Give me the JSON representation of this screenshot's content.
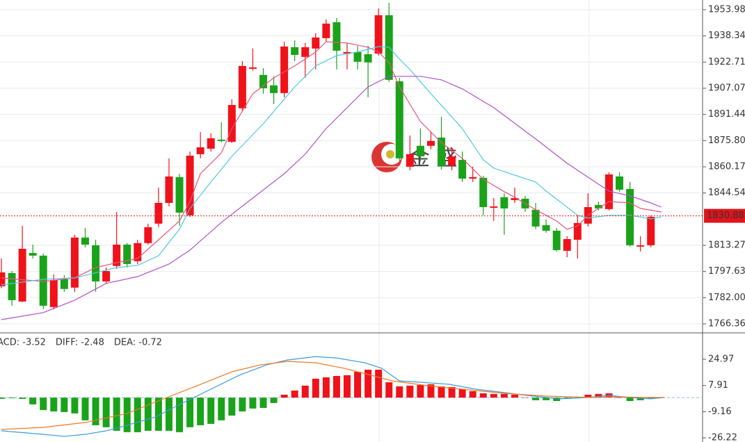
{
  "chart_data": [
    {
      "type": "candlestick",
      "up_color": "#f0121a",
      "down_color": "#1aa31a",
      "open": [
        1788.8,
        1796.7,
        1779.7,
        1808.7,
        1807.1,
        1776.4,
        1793.0,
        1788.0,
        1817.9,
        1813.3,
        1791.7,
        1800.9,
        1813.7,
        1803.8,
        1814.6,
        1826.2,
        1838.6,
        1854.0,
        1831.2,
        1867.7,
        1871.0,
        1876.4,
        1875.1,
        1895.1,
        1918.7,
        1915.0,
        1908.8,
        1904.2,
        1931.6,
        1925.8,
        1930.8,
        1937.0,
        1946.5,
        1927.8,
        1928.7,
        1927.4,
        1927.8,
        1950.7,
        1911.2,
        1860.2,
        1872.7,
        1872.7,
        1877.6,
        1861.0,
        1864.3,
        1853.1,
        1853.6,
        1835.7,
        1842.0,
        1840.3,
        1841.1,
        1834.5,
        1825.3,
        1822.0,
        1810.0,
        1816.6,
        1826.2,
        1837.4,
        1834.9,
        1854.4,
        1846.9,
        1812.5,
        1813.3
      ],
      "high": [
        1805.4,
        1797.9,
        1824.9,
        1813.7,
        1808.3,
        1795.9,
        1795.5,
        1819.5,
        1823.7,
        1816.6,
        1800.0,
        1833.2,
        1814.6,
        1816.6,
        1826.2,
        1847.8,
        1865.2,
        1856.0,
        1869.3,
        1880.9,
        1880.1,
        1886.8,
        1900.5,
        1923.3,
        1930.8,
        1919.1,
        1914.2,
        1934.9,
        1935.7,
        1934.1,
        1939.9,
        1948.2,
        1949.0,
        1934.1,
        1932.4,
        1932.4,
        1954.8,
        1958.1,
        1913.3,
        1878.9,
        1883.0,
        1880.9,
        1890.1,
        1871.8,
        1869.3,
        1860.2,
        1854.8,
        1841.5,
        1844.4,
        1847.8,
        1842.8,
        1838.6,
        1828.7,
        1823.7,
        1818.7,
        1831.2,
        1844.4,
        1839.4,
        1856.9,
        1856.9,
        1851.1,
        1818.7,
        1831.2
      ],
      "low": [
        1787.6,
        1777.2,
        1779.3,
        1805.4,
        1775.1,
        1775.1,
        1785.5,
        1785.5,
        1812.1,
        1785.5,
        1790.5,
        1799.2,
        1800.0,
        1802.1,
        1813.7,
        1824.1,
        1836.5,
        1824.9,
        1830.3,
        1865.2,
        1869.3,
        1874.7,
        1874.3,
        1893.4,
        1917.5,
        1903.8,
        1897.6,
        1901.7,
        1923.3,
        1913.3,
        1918.3,
        1934.9,
        1918.3,
        1918.3,
        1918.3,
        1901.7,
        1926.6,
        1910.8,
        1863.5,
        1858.1,
        1863.5,
        1870.6,
        1858.5,
        1858.1,
        1851.1,
        1851.1,
        1831.2,
        1827.8,
        1819.5,
        1838.6,
        1833.2,
        1822.9,
        1820.8,
        1809.6,
        1806.2,
        1805.4,
        1824.5,
        1834.1,
        1834.1,
        1845.3,
        1812.5,
        1809.6,
        1812.1
      ],
      "close": [
        1797.1,
        1780.5,
        1811.2,
        1807.1,
        1777.2,
        1792.6,
        1787.2,
        1817.9,
        1813.7,
        1791.7,
        1797.9,
        1813.7,
        1802.1,
        1814.6,
        1824.1,
        1838.6,
        1854.4,
        1832.8,
        1866.8,
        1871.8,
        1877.2,
        1875.6,
        1897.1,
        1920.4,
        1919.5,
        1907.1,
        1904.2,
        1932.0,
        1927.0,
        1931.6,
        1937.4,
        1945.7,
        1929.5,
        1928.7,
        1922.9,
        1922.5,
        1950.7,
        1912.1,
        1865.2,
        1867.7,
        1866.4,
        1875.6,
        1860.6,
        1866.4,
        1853.1,
        1854.0,
        1836.1,
        1836.5,
        1835.3,
        1841.5,
        1835.3,
        1824.5,
        1822.0,
        1810.4,
        1817.0,
        1826.6,
        1836.1,
        1835.3,
        1855.6,
        1846.5,
        1813.3,
        1813.3,
        1830.3
      ],
      "series": [
        {
          "color": "#e8537a",
          "x": [
            0,
            4,
            7,
            9,
            11,
            13,
            15,
            17,
            18,
            19,
            21,
            22,
            24,
            26,
            28,
            30,
            31,
            33,
            35,
            36,
            37,
            38,
            40,
            42,
            44,
            46,
            48,
            49,
            51,
            53,
            54,
            55,
            56,
            57,
            58,
            60,
            61,
            63
          ],
          "values": [
            1793.8,
            1791.7,
            1793.8,
            1800.0,
            1802.9,
            1805.4,
            1816.6,
            1827.8,
            1839.4,
            1856.0,
            1868.5,
            1883.0,
            1903.8,
            1913.3,
            1920.4,
            1928.7,
            1934.9,
            1934.1,
            1931.6,
            1928.7,
            1922.4,
            1907.9,
            1887.2,
            1874.7,
            1865.2,
            1852.7,
            1845.3,
            1842.0,
            1834.5,
            1827.8,
            1822.8,
            1824.9,
            1831.2,
            1835.3,
            1839.4,
            1838.6,
            1835.3,
            1833.2
          ]
        },
        {
          "color": "#4fc8e0",
          "x": [
            0,
            4,
            7,
            11,
            13,
            15,
            17,
            18,
            20,
            22,
            25,
            28,
            30,
            32,
            34,
            36,
            37,
            38,
            39,
            41,
            44,
            46,
            47,
            49,
            51,
            52,
            54,
            55,
            56,
            58,
            60,
            62,
            63
          ],
          "values": [
            1789.6,
            1793.0,
            1793.8,
            1800.0,
            1801.3,
            1807.1,
            1822.9,
            1835.3,
            1851.1,
            1866.4,
            1885.9,
            1907.9,
            1920.4,
            1926.6,
            1928.7,
            1932.0,
            1931.6,
            1924.5,
            1918.3,
            1903.8,
            1883.0,
            1864.3,
            1859.4,
            1855.2,
            1851.1,
            1845.7,
            1836.1,
            1831.2,
            1829.5,
            1831.2,
            1831.2,
            1829.1,
            1830.3
          ]
        },
        {
          "color": "#b04fc8",
          "x": [
            0,
            4,
            7,
            10,
            13,
            16,
            18,
            21,
            24,
            27,
            29,
            31,
            33,
            35,
            37,
            40,
            42,
            44,
            47,
            51,
            54,
            57,
            58,
            60,
            62,
            63
          ],
          "values": [
            1768.9,
            1773.1,
            1780.5,
            1790.5,
            1794.6,
            1802.1,
            1810.4,
            1827.0,
            1841.5,
            1856.0,
            1867.7,
            1883.0,
            1895.5,
            1907.9,
            1914.2,
            1914.2,
            1912.1,
            1906.7,
            1895.5,
            1876.8,
            1862.3,
            1849.8,
            1845.7,
            1842.8,
            1838.6,
            1836.1
          ]
        }
      ],
      "last_price": 1830.88,
      "ylim": [
        1761.38,
        1959.79
      ],
      "yticks": [
        1953.98,
        1938.34,
        1922.71,
        1907.07,
        1891.44,
        {
          "value": 1875.8,
          "label": "1875.80"
        },
        1860.17,
        1844.54,
        1813.27,
        1797.63,
        {
          "value": 1782.0,
          "label": "1782.00"
        },
        1766.36
      ],
      "grid": true,
      "watermark": "金 盛"
    },
    {
      "type": "macd",
      "series": [
        {
          "name": "ACD: -3.52",
          "color": "#1aa31a",
          "up_color": "#f0121a",
          "values": [
            -0.8,
            -0.4,
            -0.8,
            -4.4,
            -8.1,
            -9.0,
            -9.4,
            -10.3,
            -14.8,
            -18.0,
            -19.3,
            -21.6,
            -22.5,
            -22.5,
            -21.6,
            -21.6,
            -21.6,
            -22.5,
            -19.3,
            -18.0,
            -17.1,
            -14.8,
            -11.7,
            -9.0,
            -7.1,
            -6.7,
            -3.5,
            1.9,
            4.6,
            7.8,
            12.3,
            13.2,
            14.1,
            14.6,
            16.8,
            18.2,
            18.2,
            10.0,
            7.3,
            7.8,
            8.2,
            8.7,
            7.3,
            6.9,
            5.5,
            4.2,
            2.8,
            2.4,
            2.4,
            1.9,
            0.1,
            -1.7,
            -1.7,
            -2.2,
            -0.8,
            -0.4,
            1.9,
            2.4,
            2.8,
            0.1,
            -2.2,
            -1.7,
            -0.4
          ]
        },
        {
          "name": "DIFF: -2.48",
          "color": "#3a9be0",
          "x": [
            0,
            4,
            6,
            8,
            10,
            12,
            14.7,
            17.3,
            20,
            22.7,
            25.3,
            27.3,
            30,
            32,
            34.7,
            36.3,
            38,
            40,
            42.7,
            45.3,
            48,
            50.7,
            53.3,
            56,
            58,
            60,
            62,
            63.3
          ],
          "values": [
            -21.6,
            -23.9,
            -25.2,
            -23.9,
            -21.6,
            -18.0,
            -12.6,
            -3.5,
            5.5,
            14.6,
            21.3,
            24.5,
            26.7,
            25.8,
            22.7,
            19.1,
            10.9,
            10.0,
            8.7,
            5.5,
            3.3,
            1.0,
            -0.8,
            0.1,
            1.4,
            0.1,
            -0.8,
            0.1
          ]
        },
        {
          "name": "DEA: -0.72",
          "color": "#f07820",
          "x": [
            0,
            4,
            8,
            12,
            15.3,
            18.7,
            22,
            24.7,
            27.3,
            30,
            32.7,
            35.3,
            37.3,
            40.7,
            44,
            48,
            52,
            56,
            58.7,
            61.3,
            63.3
          ],
          "values": [
            -20.7,
            -19.4,
            -16.2,
            -10.3,
            -1.3,
            7.8,
            16.8,
            21.3,
            23.6,
            22.7,
            19.1,
            14.6,
            10.9,
            7.8,
            5.5,
            2.8,
            1.0,
            0.1,
            0.5,
            0.1,
            0.1
          ]
        }
      ],
      "ylim": [
        -28.9,
        41.7
      ],
      "yticks": [
        24.97,
        7.91,
        -9.16,
        -26.22
      ],
      "zero_line": 0
    }
  ]
}
